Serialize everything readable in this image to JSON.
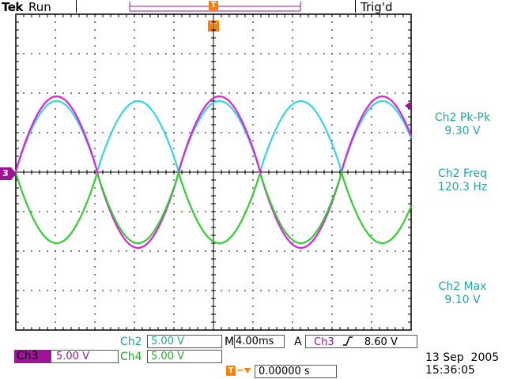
{
  "header": {
    "brand": "Tek",
    "run_state": "Run",
    "trigger_status": "Trig'd"
  },
  "markers": {
    "trigger_marker": "T",
    "ground_ch3": "3"
  },
  "measurements": [
    {
      "label": "Ch2 Pk-Pk",
      "value": "9.30 V"
    },
    {
      "label": "Ch2 Freq",
      "value": "120.3 Hz"
    },
    {
      "label": "Ch2 Max",
      "value": "9.10 V"
    }
  ],
  "channels": {
    "ch2": {
      "label": "Ch2",
      "scale": "5.00 V"
    },
    "ch3": {
      "label": "Ch3",
      "scale": "5.00 V"
    },
    "ch4": {
      "label": "Ch4",
      "scale": "5.00 V"
    }
  },
  "timebase": {
    "label": "M",
    "value": "4.00ms"
  },
  "trigger": {
    "mode": "A",
    "source": "Ch3",
    "slope_icon": "rising-edge-icon",
    "level": "8.60 V"
  },
  "trigger_position": {
    "value": "0.00000 s"
  },
  "datetime": {
    "date": "13 Sep  2005",
    "time": "15:36:05"
  },
  "colors": {
    "ch2": "#1aa7a7",
    "ch3": "#a0129a",
    "ch4": "#1db51d",
    "ch2_trace": "#30d8e6",
    "ch3_trace": "#e020e0",
    "ch4_trace": "#30d030",
    "trigger_marker": "#ff7f00"
  }
}
